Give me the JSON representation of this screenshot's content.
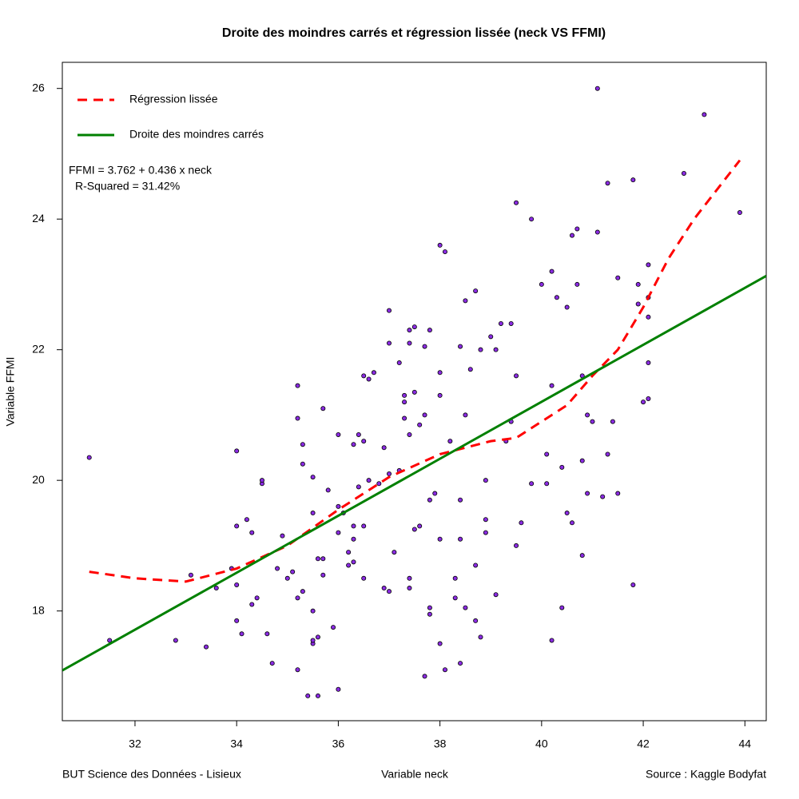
{
  "chart_data": {
    "type": "scatter",
    "title": "Droite des moindres carrés et régression lissée (neck VS FFMI)",
    "x_label": "Variable neck",
    "y_label": "Variable FFMI",
    "footer_left": "BUT Science des Données - Lisieux",
    "footer_right": "Source : Kaggle Bodyfat",
    "xlim": [
      30.57,
      44.42
    ],
    "ylim": [
      16.32,
      26.4
    ],
    "xticks": [
      32,
      34,
      36,
      38,
      40,
      42,
      44
    ],
    "yticks": [
      18,
      20,
      22,
      24,
      26
    ],
    "legend": "top-left",
    "annotations": [
      "FFMI = 3.762 + 0.436 x neck",
      "R-Squared = 31.42%"
    ],
    "series": [
      {
        "type": "scatter",
        "color": "#8a2be2",
        "x": [
          31.1,
          31.5,
          32.8,
          33.1,
          33.4,
          33.6,
          33.9,
          34.0,
          34.0,
          34.0,
          34.0,
          34.1,
          34.2,
          34.3,
          34.3,
          34.4,
          34.5,
          34.5,
          34.6,
          34.7,
          34.8,
          34.9,
          35.0,
          35.1,
          35.2,
          35.2,
          35.2,
          35.2,
          35.3,
          35.3,
          35.3,
          35.4,
          35.5,
          35.5,
          35.5,
          35.5,
          35.5,
          35.6,
          35.6,
          35.6,
          35.7,
          35.7,
          35.7,
          35.8,
          35.9,
          36.0,
          36.0,
          36.0,
          36.0,
          36.1,
          36.2,
          36.2,
          36.3,
          36.3,
          36.3,
          36.3,
          36.4,
          36.4,
          36.5,
          36.5,
          36.5,
          36.5,
          36.6,
          36.6,
          36.7,
          36.8,
          36.9,
          36.9,
          37.0,
          37.0,
          37.0,
          37.0,
          37.1,
          37.2,
          37.2,
          37.3,
          37.3,
          37.3,
          37.4,
          37.4,
          37.4,
          37.4,
          37.4,
          37.5,
          37.5,
          37.5,
          37.6,
          37.6,
          37.7,
          37.7,
          37.7,
          37.8,
          37.8,
          37.8,
          37.8,
          37.9,
          38.0,
          38.0,
          38.0,
          38.0,
          38.0,
          38.1,
          38.1,
          38.2,
          38.3,
          38.3,
          38.4,
          38.4,
          38.4,
          38.4,
          38.5,
          38.5,
          38.5,
          38.6,
          38.7,
          38.7,
          38.7,
          38.8,
          38.8,
          38.9,
          38.9,
          38.9,
          39.0,
          39.1,
          39.1,
          39.2,
          39.3,
          39.4,
          39.4,
          39.5,
          39.5,
          39.5,
          39.6,
          39.8,
          39.8,
          40.0,
          40.1,
          40.1,
          40.2,
          40.2,
          40.2,
          40.3,
          40.4,
          40.4,
          40.5,
          40.5,
          40.6,
          40.6,
          40.7,
          40.7,
          40.8,
          40.8,
          40.8,
          40.9,
          40.9,
          41.0,
          41.1,
          41.1,
          41.2,
          41.3,
          41.3,
          41.4,
          41.5,
          41.5,
          41.8,
          41.8,
          41.9,
          41.9,
          42.0,
          42.1,
          42.1,
          42.1,
          42.1,
          42.1,
          42.8,
          43.2,
          43.9
        ],
        "values": [
          20.35,
          17.55,
          17.55,
          18.55,
          17.45,
          18.35,
          18.65,
          17.85,
          18.4,
          19.3,
          20.45,
          17.65,
          19.4,
          18.1,
          19.2,
          18.2,
          19.95,
          20.0,
          17.65,
          17.2,
          18.65,
          19.15,
          18.5,
          18.6,
          17.1,
          18.2,
          20.95,
          21.45,
          20.55,
          20.25,
          18.3,
          16.7,
          17.5,
          17.55,
          18.0,
          19.5,
          20.05,
          16.7,
          17.6,
          18.8,
          18.8,
          18.55,
          21.1,
          19.85,
          17.75,
          16.8,
          19.2,
          19.6,
          20.7,
          19.5,
          18.9,
          18.7,
          18.75,
          19.3,
          19.1,
          20.55,
          20.7,
          19.9,
          18.5,
          19.3,
          20.6,
          21.6,
          21.55,
          20.0,
          21.65,
          19.95,
          18.35,
          20.5,
          18.3,
          20.1,
          22.6,
          22.1,
          18.9,
          20.15,
          21.8,
          20.95,
          21.3,
          21.2,
          22.3,
          22.1,
          18.5,
          18.35,
          20.7,
          21.35,
          22.35,
          19.25,
          20.85,
          19.3,
          21.0,
          22.05,
          17.0,
          17.95,
          19.7,
          18.05,
          22.3,
          19.8,
          23.6,
          21.65,
          21.3,
          17.5,
          19.1,
          23.5,
          17.1,
          20.6,
          18.2,
          18.5,
          17.2,
          19.1,
          19.7,
          22.05,
          22.75,
          21.0,
          18.05,
          21.7,
          18.7,
          17.85,
          22.9,
          17.6,
          22.0,
          19.4,
          20.0,
          19.2,
          22.2,
          22.0,
          18.25,
          22.4,
          20.6,
          20.9,
          22.4,
          24.25,
          21.6,
          19.0,
          19.35,
          19.95,
          24.0,
          23.0,
          20.4,
          19.95,
          17.55,
          23.2,
          21.45,
          22.8,
          18.05,
          20.2,
          19.5,
          22.65,
          19.35,
          23.75,
          23.85,
          23.0,
          20.3,
          18.85,
          21.6,
          21.0,
          19.8,
          20.9,
          23.8,
          26.0,
          19.75,
          24.55,
          20.4,
          20.9,
          23.1,
          19.8,
          24.6,
          18.4,
          23.0,
          22.7,
          21.2,
          22.5,
          22.8,
          23.3,
          21.8,
          21.25,
          24.7,
          25.6,
          24.1
        ]
      },
      {
        "type": "line",
        "name": "Régression lissée",
        "color": "#ff0000",
        "dashed": true,
        "x": [
          31.1,
          32.0,
          33.0,
          34.0,
          35.0,
          36.0,
          37.0,
          38.0,
          39.0,
          39.5,
          40.0,
          40.5,
          41.0,
          41.5,
          42.0,
          42.5,
          43.0,
          43.5,
          43.9
        ],
        "values": [
          18.6,
          18.5,
          18.45,
          18.65,
          19.0,
          19.55,
          20.05,
          20.4,
          20.6,
          20.65,
          20.9,
          21.15,
          21.6,
          22.0,
          22.65,
          23.4,
          24.0,
          24.5,
          24.9
        ]
      },
      {
        "type": "line",
        "name": "Droite des moindres carrés",
        "color": "#008000",
        "dashed": false,
        "x": [
          30.57,
          44.42
        ],
        "values": [
          17.09,
          23.13
        ]
      }
    ]
  }
}
